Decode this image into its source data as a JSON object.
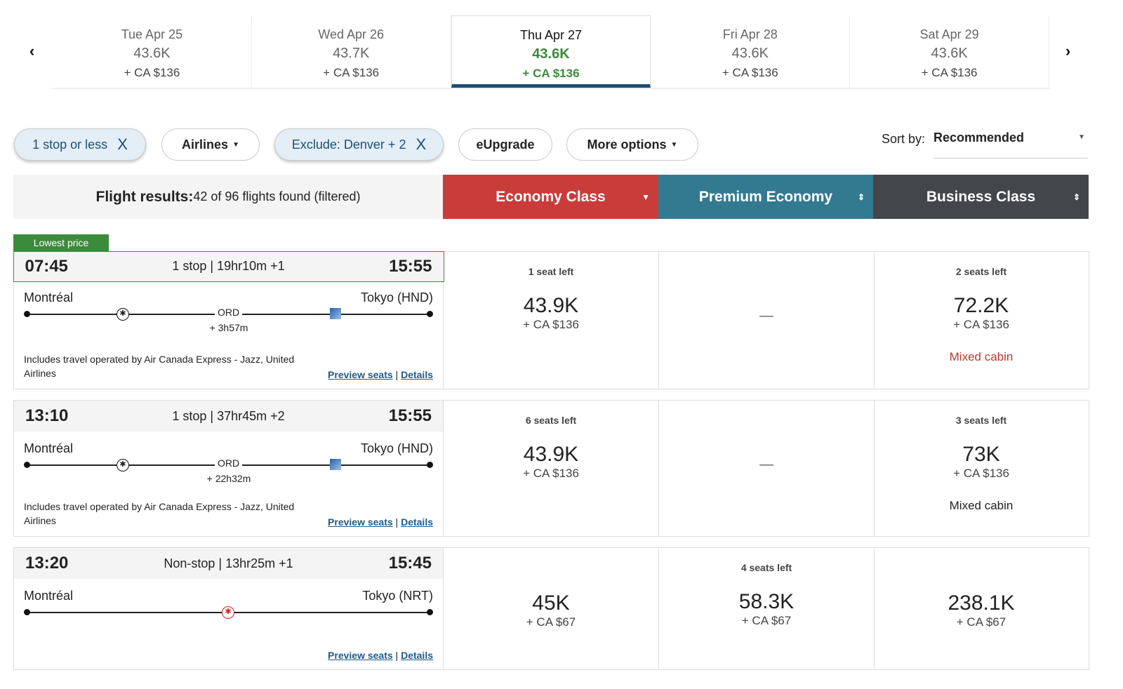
{
  "dates": [
    {
      "day": "Tue Apr 25",
      "points": "43.6K",
      "tax": "+ CA $136"
    },
    {
      "day": "Wed Apr 26",
      "points": "43.7K",
      "tax": "+ CA $136"
    },
    {
      "day": "Thu Apr 27",
      "points": "43.6K",
      "tax": "+ CA $136",
      "selected": true
    },
    {
      "day": "Fri Apr 28",
      "points": "43.6K",
      "tax": "+ CA $136"
    },
    {
      "day": "Sat Apr 29",
      "points": "43.6K",
      "tax": "+ CA $136"
    }
  ],
  "filters": {
    "stops": "1 stop or less",
    "airlines": "Airlines",
    "exclude": "Exclude: Denver + 2",
    "eupgrade": "eUpgrade",
    "more": "More options",
    "close": "X"
  },
  "sort": {
    "label": "Sort by:",
    "value": "Recommended"
  },
  "header": {
    "results_label": "Flight results:",
    "results_text": "42 of 96 flights found (filtered)",
    "economy": "Economy Class",
    "premium": "Premium Economy",
    "business": "Business Class"
  },
  "colors": {
    "economy": "#c93c3a",
    "premium": "#337a91",
    "business": "#43474a",
    "accent": "#3c8a3c"
  },
  "badge": "Lowest price",
  "links": {
    "preview": "Preview seats",
    "sep": "|",
    "details": "Details"
  },
  "flights": [
    {
      "depart": "07:45",
      "summary": "1 stop | 19hr10m +1",
      "arrive": "15:55",
      "from": "Montréal",
      "to": "Tokyo (HND)",
      "stop": "ORD",
      "layover": "+ 3h57m",
      "operated": "Includes travel operated by Air Canada Express - Jazz, United Airlines",
      "economy": {
        "seats": "1 seat left",
        "points": "43.9K",
        "tax": "+ CA $136"
      },
      "premium": {
        "dash": "—"
      },
      "business": {
        "seats": "2 seats left",
        "points": "72.2K",
        "tax": "+ CA $136",
        "note": "Mixed cabin"
      }
    },
    {
      "depart": "13:10",
      "summary": "1 stop | 37hr45m +2",
      "arrive": "15:55",
      "from": "Montréal",
      "to": "Tokyo (HND)",
      "stop": "ORD",
      "layover": "+ 22h32m",
      "operated": "Includes travel operated by Air Canada Express - Jazz, United Airlines",
      "economy": {
        "seats": "6 seats left",
        "points": "43.9K",
        "tax": "+ CA $136"
      },
      "premium": {
        "dash": "—"
      },
      "business": {
        "seats": "3 seats left",
        "points": "73K",
        "tax": "+ CA $136",
        "note": "Mixed cabin"
      }
    },
    {
      "depart": "13:20",
      "summary": "Non-stop | 13hr25m +1",
      "arrive": "15:45",
      "from": "Montréal",
      "to": "Tokyo (NRT)",
      "economy": {
        "points": "45K",
        "tax": "+ CA $67"
      },
      "premium": {
        "seats": "4 seats left",
        "points": "58.3K",
        "tax": "+ CA $67"
      },
      "business": {
        "points": "238.1K",
        "tax": "+ CA $67"
      }
    }
  ]
}
